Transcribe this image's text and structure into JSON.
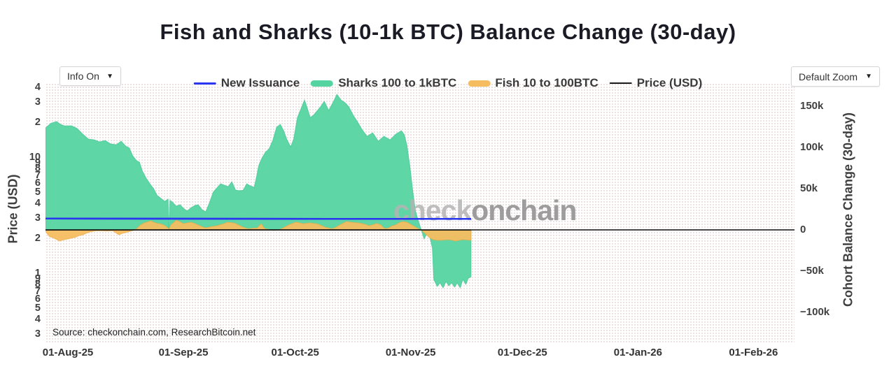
{
  "title": "Fish and Sharks (10-1k BTC) Balance Change (30-day)",
  "controls": {
    "info_label": "Info On",
    "zoom_label": "Default Zoom",
    "caret": "▼"
  },
  "legend": [
    {
      "label": "New Issuance",
      "type": "line",
      "color": "#2a35f0"
    },
    {
      "label": "Sharks 100 to 1kBTC",
      "type": "area",
      "color": "#55d4a1"
    },
    {
      "label": "Fish 10 to 100BTC",
      "type": "area",
      "color": "#f6bd60"
    },
    {
      "label": "Price (USD)",
      "type": "line",
      "color": "#1a1a1a"
    }
  ],
  "watermark": {
    "part1": "check",
    "part2": "onchain",
    "color1": "#b5b5b5",
    "color2": "#8e8e8e"
  },
  "source": "Source: checkonchain.com, ResearchBitcoin.net",
  "axes": {
    "left": {
      "title": "Price (USD)",
      "scale": "log",
      "ticks": [
        {
          "label": "4",
          "value": 40
        },
        {
          "label": "3",
          "value": 30
        },
        {
          "label": "2",
          "value": 20
        },
        {
          "label": "10",
          "value": 10
        },
        {
          "label": "9",
          "value": 9
        },
        {
          "label": "8",
          "value": 8
        },
        {
          "label": "7",
          "value": 7
        },
        {
          "label": "6",
          "value": 6
        },
        {
          "label": "5",
          "value": 5
        },
        {
          "label": "4",
          "value": 4
        },
        {
          "label": "3",
          "value": 3
        },
        {
          "label": "2",
          "value": 2
        },
        {
          "label": "1",
          "value": 1
        },
        {
          "label": "9",
          "value": 0.9
        },
        {
          "label": "8",
          "value": 0.8
        },
        {
          "label": "7",
          "value": 0.7
        },
        {
          "label": "6",
          "value": 0.6
        },
        {
          "label": "5",
          "value": 0.5
        },
        {
          "label": "4",
          "value": 0.4
        },
        {
          "label": "3",
          "value": 0.3
        }
      ]
    },
    "right": {
      "title": "Cohort Balance Change (30-day)",
      "scale": "linear",
      "unit": "BTC (thousands)",
      "ticks": [
        {
          "label": "150k",
          "value": 150
        },
        {
          "label": "100k",
          "value": 100
        },
        {
          "label": "50k",
          "value": 50
        },
        {
          "label": "0",
          "value": 0
        },
        {
          "label": "−50k",
          "value": -50
        },
        {
          "label": "−100k",
          "value": -100
        }
      ]
    },
    "x": {
      "ticks": [
        {
          "label": "01-Aug-25",
          "day": 0
        },
        {
          "label": "01-Sep-25",
          "day": 31
        },
        {
          "label": "01-Oct-25",
          "day": 61
        },
        {
          "label": "01-Nov-25",
          "day": 92
        },
        {
          "label": "01-Dec-25",
          "day": 122
        },
        {
          "label": "01-Jan-26",
          "day": 153
        },
        {
          "label": "01-Feb-26",
          "day": 184
        }
      ]
    }
  },
  "chart_data": {
    "type": "area",
    "x_unit": "days since 01-Aug-25 (data ends ~16-Nov-25)",
    "y_unit_right": "cohort balance change, thousands of BTC",
    "zero_line_right": 0,
    "price_line_left_axis_value": 2.36,
    "series": [
      {
        "name": "New Issuance",
        "type": "line",
        "axis": "right",
        "color": "#2a35f0",
        "width": 2.5,
        "points": [
          [
            -6,
            13.7
          ],
          [
            30,
            13.6
          ],
          [
            70,
            13.4
          ],
          [
            108.2,
            13.3
          ]
        ]
      },
      {
        "name": "Sharks 100 to 1kBTC",
        "type": "area",
        "axis": "right",
        "color": "#55d4a1",
        "edge": "#35c08c",
        "points": [
          [
            -6,
            123.7
          ],
          [
            -4.5,
            129.5
          ],
          [
            -3,
            131.4
          ],
          [
            -2,
            128
          ],
          [
            -1,
            126.3
          ],
          [
            1,
            126.3
          ],
          [
            2.5,
            123
          ],
          [
            4,
            116.1
          ],
          [
            5.5,
            110.2
          ],
          [
            7,
            109.3
          ],
          [
            8.5,
            106.8
          ],
          [
            10,
            108.5
          ],
          [
            11.5,
            104.2
          ],
          [
            13,
            103.4
          ],
          [
            14.3,
            107.6
          ],
          [
            15.5,
            101.7
          ],
          [
            16.5,
            99.2
          ],
          [
            17.3,
            90.7
          ],
          [
            18.4,
            84
          ],
          [
            19.2,
            82.2
          ],
          [
            20,
            71.2
          ],
          [
            21,
            62.7
          ],
          [
            22,
            56
          ],
          [
            23,
            50
          ],
          [
            24,
            41.5
          ],
          [
            25,
            38.1
          ],
          [
            26,
            34.7
          ],
          [
            26.9,
            37.3
          ],
          [
            27.1,
            1
          ],
          [
            27.4,
            36
          ],
          [
            28.2,
            33.1
          ],
          [
            29,
            28.8
          ],
          [
            30.1,
            30.5
          ],
          [
            31,
            26.3
          ],
          [
            32,
            22.9
          ],
          [
            33.1,
            27.1
          ],
          [
            34.1,
            29.7
          ],
          [
            35,
            30.5
          ],
          [
            36,
            24.6
          ],
          [
            37,
            22
          ],
          [
            38,
            33.1
          ],
          [
            39,
            45.8
          ],
          [
            40,
            51
          ],
          [
            41,
            55.9
          ],
          [
            42,
            54.2
          ],
          [
            43,
            52.5
          ],
          [
            44,
            58.5
          ],
          [
            45,
            48.3
          ],
          [
            46,
            47.5
          ],
          [
            47,
            48
          ],
          [
            48,
            55.9
          ],
          [
            49,
            53.4
          ],
          [
            50,
            51.7
          ],
          [
            50.7,
            66.1
          ],
          [
            51.2,
            77.9
          ],
          [
            52,
            86.4
          ],
          [
            53,
            94.1
          ],
          [
            54,
            98.3
          ],
          [
            55,
            108.5
          ],
          [
            56,
            124.6
          ],
          [
            57,
            128
          ],
          [
            57.9,
            120.3
          ],
          [
            58.8,
            109.3
          ],
          [
            59.8,
            100.8
          ],
          [
            60.6,
            110.2
          ],
          [
            61.6,
            136.4
          ],
          [
            62.6,
            147.4
          ],
          [
            63.5,
            157.6
          ],
          [
            64.3,
            147.4
          ],
          [
            65,
            136.4
          ],
          [
            65.9,
            139
          ],
          [
            67,
            144.9
          ],
          [
            67.9,
            150
          ],
          [
            68.8,
            155.9
          ],
          [
            70,
            144.9
          ],
          [
            71.3,
            155.9
          ],
          [
            72.2,
            164.4
          ],
          [
            73.3,
            157.6
          ],
          [
            74.4,
            154.2
          ],
          [
            75.4,
            149.2
          ],
          [
            76.6,
            139
          ],
          [
            77.8,
            130.5
          ],
          [
            78.9,
            122
          ],
          [
            80.3,
            113.6
          ],
          [
            81.8,
            117.8
          ],
          [
            83.3,
            107.6
          ],
          [
            84.8,
            113.6
          ],
          [
            86.5,
            109.3
          ],
          [
            88,
            116.1
          ],
          [
            89.5,
            120.3
          ],
          [
            90.3,
            115.3
          ],
          [
            91,
            102.5
          ],
          [
            91.8,
            77.1
          ],
          [
            92.6,
            45.8
          ],
          [
            93.3,
            22.9
          ],
          [
            94,
            11.9
          ],
          [
            94.8,
            0.8
          ],
          [
            95.6,
            -11
          ],
          [
            96.3,
            -5.1
          ],
          [
            97.1,
            -7.6
          ],
          [
            97.8,
            -22
          ],
          [
            98.2,
            -60.2
          ],
          [
            99.1,
            -68.6
          ],
          [
            99.9,
            -64.4
          ],
          [
            100.7,
            -70.3
          ],
          [
            101.5,
            -62.7
          ],
          [
            102.2,
            -67.8
          ],
          [
            103,
            -64.4
          ],
          [
            103.8,
            -69.5
          ],
          [
            104.5,
            -64.4
          ],
          [
            105.3,
            -70.3
          ],
          [
            106,
            -60.2
          ],
          [
            106.8,
            -66.1
          ],
          [
            107.5,
            -58.5
          ],
          [
            108.2,
            -57
          ]
        ]
      },
      {
        "name": "Fish 10 to 100BTC",
        "type": "area",
        "axis": "right",
        "color": "#f6bd60",
        "edge": "#e8a640",
        "points": [
          [
            -6,
            -2
          ],
          [
            -5,
            -8
          ],
          [
            -4,
            -9.5
          ],
          [
            -2.3,
            -13.5
          ],
          [
            -1,
            -12
          ],
          [
            0,
            -11
          ],
          [
            1,
            -10
          ],
          [
            2,
            -9
          ],
          [
            3,
            -7
          ],
          [
            4,
            -6
          ],
          [
            5,
            -4
          ],
          [
            6,
            -2.5
          ],
          [
            7.5,
            -1.2
          ],
          [
            9,
            -1
          ],
          [
            10.5,
            -1.5
          ],
          [
            12,
            -1
          ],
          [
            13,
            -4
          ],
          [
            13.7,
            -6
          ],
          [
            14.5,
            -4.5
          ],
          [
            15.5,
            -3.3
          ],
          [
            16.5,
            -2
          ],
          [
            17.5,
            -0.8
          ],
          [
            18.5,
            1.5
          ],
          [
            19.4,
            5.9
          ],
          [
            20.5,
            8.5
          ],
          [
            21.5,
            9.8
          ],
          [
            22.2,
            11
          ],
          [
            23,
            9.3
          ],
          [
            24,
            8
          ],
          [
            25,
            7.2
          ],
          [
            26,
            5.5
          ],
          [
            26.9,
            2
          ],
          [
            27.1,
            0.5
          ],
          [
            27.6,
            6
          ],
          [
            28.4,
            9
          ],
          [
            29.1,
            11.9
          ],
          [
            30,
            10
          ],
          [
            31,
            7.6
          ],
          [
            32,
            8.5
          ],
          [
            33,
            9.3
          ],
          [
            34,
            7.8
          ],
          [
            35,
            5.9
          ],
          [
            36,
            4
          ],
          [
            36.9,
            2.5
          ],
          [
            38,
            3.5
          ],
          [
            38.7,
            4.2
          ],
          [
            40,
            5
          ],
          [
            40.6,
            5.9
          ],
          [
            41.8,
            7.5
          ],
          [
            42.8,
            9.3
          ],
          [
            44,
            8.8
          ],
          [
            44.9,
            8
          ],
          [
            46,
            5.5
          ],
          [
            47,
            3.4
          ],
          [
            48.4,
            1.3
          ],
          [
            49.6,
            2
          ],
          [
            50.8,
            2.5
          ],
          [
            51.9,
            7.6
          ],
          [
            52.8,
            1.7
          ],
          [
            54,
            0.5
          ],
          [
            55.1,
            -0.8
          ],
          [
            56,
            -0.4
          ],
          [
            56.9,
            0.4
          ],
          [
            58,
            3
          ],
          [
            59.2,
            5.9
          ],
          [
            60,
            7.5
          ],
          [
            61.1,
            9.3
          ],
          [
            62,
            8.8
          ],
          [
            63,
            7.6
          ],
          [
            64,
            8
          ],
          [
            65,
            8.5
          ],
          [
            66,
            7.8
          ],
          [
            67,
            7.2
          ],
          [
            68,
            5.5
          ],
          [
            69,
            3.4
          ],
          [
            70,
            2.2
          ],
          [
            70.9,
            1.3
          ],
          [
            72,
            3.5
          ],
          [
            72.9,
            5.9
          ],
          [
            74,
            8.5
          ],
          [
            74.8,
            10.2
          ],
          [
            76,
            9.3
          ],
          [
            76.9,
            8.9
          ],
          [
            78,
            8.5
          ],
          [
            79,
            7.6
          ],
          [
            80,
            6.5
          ],
          [
            80.8,
            5.1
          ],
          [
            82,
            6.5
          ],
          [
            82.9,
            8
          ],
          [
            84,
            6
          ],
          [
            85,
            1.7
          ],
          [
            85.9,
            2
          ],
          [
            87,
            5
          ],
          [
            87.9,
            5.9
          ],
          [
            89,
            8.9
          ],
          [
            89.9,
            10.2
          ],
          [
            91,
            9.3
          ],
          [
            92,
            6.8
          ],
          [
            93,
            4.2
          ],
          [
            94,
            1.7
          ],
          [
            95,
            -0.8
          ],
          [
            96,
            -5.1
          ],
          [
            97,
            -9.3
          ],
          [
            98,
            -11.9
          ],
          [
            99,
            -12.5
          ],
          [
            100,
            -12.7
          ],
          [
            101,
            -12.3
          ],
          [
            102,
            -11.9
          ],
          [
            103,
            -12.5
          ],
          [
            104,
            -13.6
          ],
          [
            105,
            -12.7
          ],
          [
            106,
            -11.9
          ],
          [
            107,
            -12.3
          ],
          [
            108.2,
            -12.7
          ]
        ]
      },
      {
        "name": "Price (USD)",
        "type": "line",
        "axis": "left_log",
        "color": "#1a1a1a",
        "width": 1.5,
        "points": [
          [
            -6,
            2.36
          ],
          [
            108.2,
            2.36
          ]
        ]
      }
    ]
  }
}
